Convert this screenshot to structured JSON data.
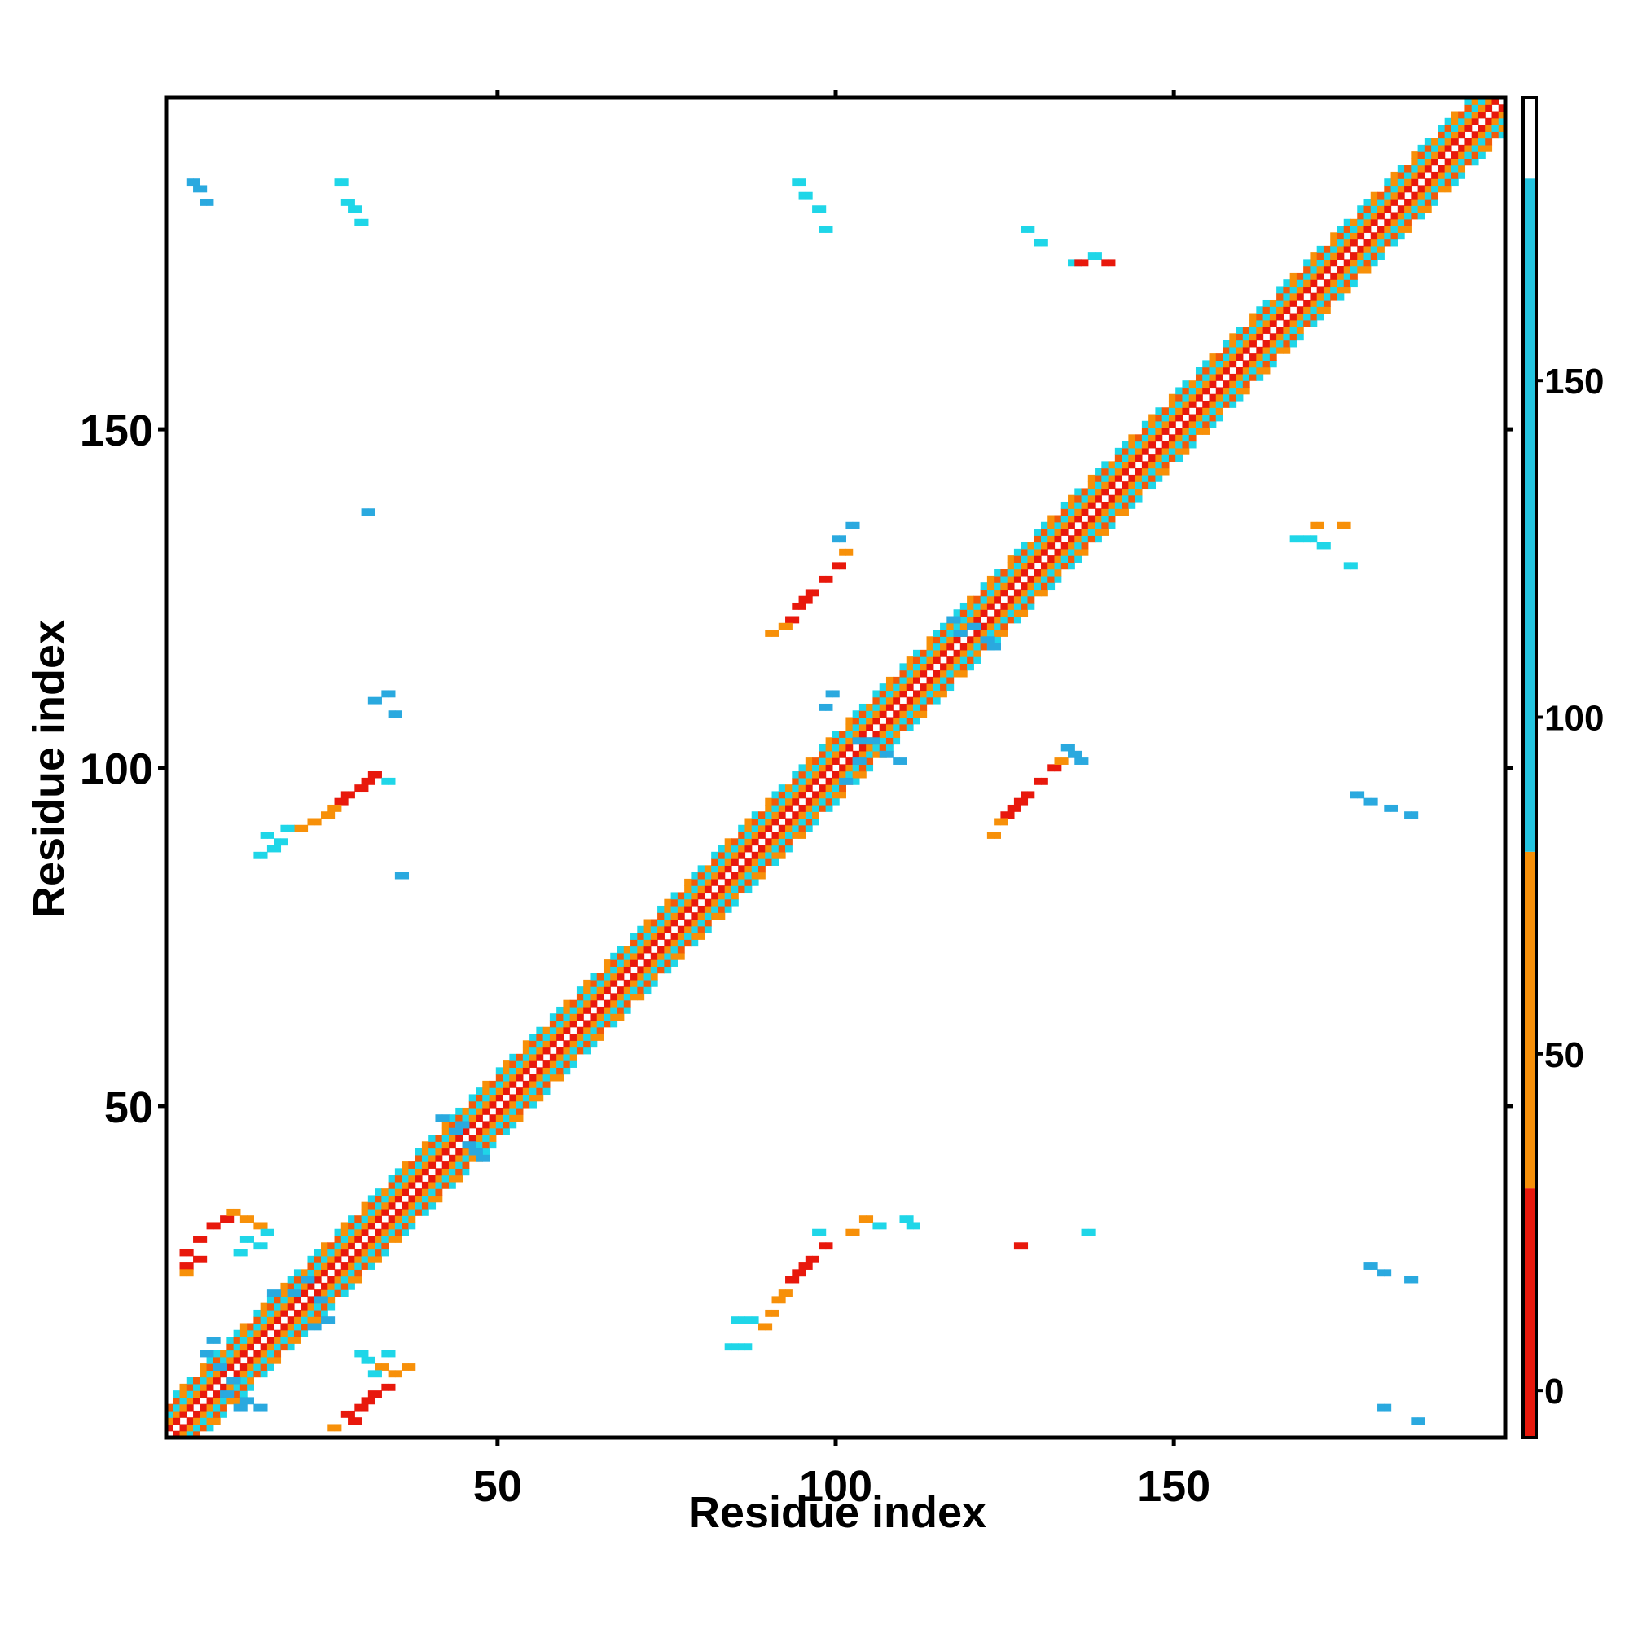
{
  "chart_data": {
    "type": "heatmap",
    "title": "",
    "xlabel": "Residue index",
    "ylabel": "Residue index",
    "xlim": [
      1,
      199
    ],
    "ylim": [
      1,
      199
    ],
    "x_ticks": [
      50,
      100,
      150
    ],
    "y_ticks": [
      50,
      100,
      150
    ],
    "colorbar": {
      "ticks": [
        0,
        50,
        100,
        150
      ],
      "range": [
        -7,
        192
      ],
      "bands": [
        {
          "from": -7,
          "to": 30,
          "color": "#e8180c"
        },
        {
          "from": 30,
          "to": 80,
          "color": "#f79009"
        },
        {
          "from": 80,
          "to": 180,
          "color": "#23c4e0"
        },
        {
          "from": 180,
          "to": 192,
          "color": "#ffffff"
        }
      ]
    },
    "colors": {
      "red": "#e8180c",
      "orange_red": "#f25a0a",
      "orange": "#f79009",
      "cyan": "#1fd6e8",
      "sky": "#2aa9df",
      "steel": "#3f86c0"
    },
    "regions": [
      {
        "kind": "diagonal",
        "from": 1,
        "to": 199
      },
      {
        "kind": "blob",
        "color": "red",
        "points": [
          [
            3,
            28
          ],
          [
            5,
            30
          ],
          [
            7,
            32
          ],
          [
            9,
            33
          ],
          [
            3,
            26
          ],
          [
            5,
            27
          ]
        ]
      },
      {
        "kind": "blob",
        "color": "orange",
        "points": [
          [
            10,
            34
          ],
          [
            12,
            33
          ],
          [
            14,
            32
          ],
          [
            3,
            25
          ]
        ]
      },
      {
        "kind": "blob",
        "color": "cyan",
        "points": [
          [
            12,
            30
          ],
          [
            14,
            29
          ],
          [
            15,
            31
          ],
          [
            11,
            28
          ]
        ]
      },
      {
        "kind": "blob",
        "color": "red",
        "points": [
          [
            27,
            4
          ],
          [
            29,
            5
          ],
          [
            31,
            7
          ],
          [
            33,
            8
          ],
          [
            30,
            6
          ],
          [
            28,
            3
          ]
        ]
      },
      {
        "kind": "blob",
        "color": "orange",
        "points": [
          [
            25,
            2
          ],
          [
            34,
            10
          ],
          [
            36,
            11
          ],
          [
            32,
            11
          ]
        ]
      },
      {
        "kind": "blob",
        "color": "cyan",
        "points": [
          [
            30,
            12
          ],
          [
            33,
            13
          ],
          [
            29,
            13
          ],
          [
            31,
            10
          ]
        ]
      },
      {
        "kind": "blob",
        "color": "sky",
        "points": [
          [
            6,
            13
          ],
          [
            8,
            11
          ],
          [
            10,
            9
          ],
          [
            7,
            15
          ],
          [
            9,
            7
          ],
          [
            11,
            5
          ],
          [
            12,
            6
          ],
          [
            14,
            5
          ]
        ]
      },
      {
        "kind": "blob",
        "color": "sky",
        "points": [
          [
            16,
            22
          ],
          [
            19,
            22
          ],
          [
            21,
            24
          ],
          [
            23,
            21
          ],
          [
            24,
            18
          ],
          [
            22,
            17
          ]
        ]
      },
      {
        "kind": "blob",
        "color": "sky",
        "points": [
          [
            41,
            48
          ],
          [
            43,
            46
          ],
          [
            45,
            44
          ],
          [
            47,
            42
          ],
          [
            44,
            47
          ],
          [
            46,
            43
          ]
        ]
      },
      {
        "kind": "blob",
        "color": "red",
        "points": [
          [
            27,
            96
          ],
          [
            29,
            97
          ],
          [
            31,
            99
          ],
          [
            26,
            95
          ],
          [
            30,
            98
          ]
        ]
      },
      {
        "kind": "blob",
        "color": "orange",
        "points": [
          [
            22,
            92
          ],
          [
            24,
            93
          ],
          [
            20,
            91
          ],
          [
            25,
            94
          ]
        ]
      },
      {
        "kind": "blob",
        "color": "cyan",
        "points": [
          [
            15,
            90
          ],
          [
            17,
            89
          ],
          [
            18,
            91
          ],
          [
            14,
            87
          ],
          [
            16,
            88
          ],
          [
            33,
            98
          ]
        ]
      },
      {
        "kind": "blob",
        "color": "sky",
        "points": [
          [
            35,
            84
          ],
          [
            31,
            110
          ],
          [
            33,
            111
          ],
          [
            34,
            108
          ],
          [
            30,
            138
          ],
          [
            4,
            187
          ],
          [
            6,
            184
          ],
          [
            5,
            186
          ]
        ]
      },
      {
        "kind": "blob",
        "color": "cyan",
        "points": [
          [
            26,
            187
          ],
          [
            27,
            184
          ],
          [
            28,
            183
          ],
          [
            29,
            181
          ]
        ]
      },
      {
        "kind": "blob",
        "color": "red",
        "points": [
          [
            94,
            25
          ],
          [
            96,
            27
          ],
          [
            98,
            29
          ],
          [
            95,
            26
          ],
          [
            93,
            24
          ]
        ]
      },
      {
        "kind": "blob",
        "color": "orange",
        "points": [
          [
            91,
            21
          ],
          [
            92,
            22
          ],
          [
            90,
            19
          ],
          [
            89,
            17
          ]
        ]
      },
      {
        "kind": "blob",
        "color": "cyan",
        "points": [
          [
            85,
            18
          ],
          [
            87,
            18
          ],
          [
            84,
            14
          ],
          [
            86,
            14
          ],
          [
            97,
            31
          ]
        ]
      },
      {
        "kind": "blob",
        "color": "red",
        "points": [
          [
            94,
            124
          ],
          [
            96,
            126
          ],
          [
            98,
            128
          ],
          [
            100,
            130
          ],
          [
            95,
            125
          ],
          [
            93,
            122
          ]
        ]
      },
      {
        "kind": "blob",
        "color": "orange",
        "points": [
          [
            92,
            121
          ],
          [
            101,
            132
          ],
          [
            90,
            120
          ]
        ]
      },
      {
        "kind": "blob",
        "color": "sky",
        "points": [
          [
            100,
            134
          ],
          [
            102,
            136
          ],
          [
            98,
            109
          ],
          [
            99,
            111
          ],
          [
            101,
            98
          ],
          [
            103,
            101
          ]
        ]
      },
      {
        "kind": "blob",
        "color": "sky",
        "points": [
          [
            105,
            104
          ],
          [
            107,
            102
          ],
          [
            109,
            101
          ],
          [
            103,
            104
          ]
        ]
      },
      {
        "kind": "blob",
        "color": "sky",
        "points": [
          [
            118,
            120
          ],
          [
            120,
            121
          ],
          [
            122,
            119
          ],
          [
            123,
            118
          ],
          [
            117,
            122
          ]
        ]
      },
      {
        "kind": "blob",
        "color": "red",
        "points": [
          [
            126,
            94
          ],
          [
            128,
            96
          ],
          [
            130,
            98
          ],
          [
            132,
            100
          ],
          [
            127,
            95
          ],
          [
            125,
            93
          ]
        ]
      },
      {
        "kind": "blob",
        "color": "orange",
        "points": [
          [
            124,
            92
          ],
          [
            133,
            101
          ],
          [
            123,
            90
          ]
        ]
      },
      {
        "kind": "blob",
        "color": "sky",
        "points": [
          [
            134,
            103
          ],
          [
            136,
            101
          ],
          [
            135,
            102
          ]
        ]
      },
      {
        "kind": "blob",
        "color": "cyan",
        "points": [
          [
            135,
            175
          ],
          [
            138,
            176
          ],
          [
            130,
            178
          ],
          [
            128,
            180
          ]
        ]
      },
      {
        "kind": "blob",
        "color": "red",
        "points": [
          [
            136,
            175
          ],
          [
            140,
            175
          ],
          [
            127,
            29
          ]
        ]
      },
      {
        "kind": "blob",
        "color": "cyan",
        "points": [
          [
            110,
            33
          ],
          [
            111,
            32
          ],
          [
            106,
            32
          ],
          [
            137,
            31
          ]
        ]
      },
      {
        "kind": "blob",
        "color": "orange",
        "points": [
          [
            104,
            33
          ],
          [
            102,
            31
          ]
        ]
      },
      {
        "kind": "blob",
        "color": "cyan",
        "points": [
          [
            170,
            134
          ],
          [
            172,
            133
          ],
          [
            168,
            134
          ],
          [
            176,
            130
          ]
        ]
      },
      {
        "kind": "blob",
        "color": "orange",
        "points": [
          [
            171,
            136
          ],
          [
            175,
            136
          ]
        ]
      },
      {
        "kind": "blob",
        "color": "sky",
        "points": [
          [
            177,
            96
          ],
          [
            179,
            95
          ],
          [
            182,
            94
          ],
          [
            185,
            93
          ]
        ]
      },
      {
        "kind": "blob",
        "color": "sky",
        "points": [
          [
            179,
            26
          ],
          [
            181,
            25
          ],
          [
            185,
            24
          ],
          [
            181,
            5
          ],
          [
            186,
            3
          ]
        ]
      },
      {
        "kind": "blob",
        "color": "cyan",
        "points": [
          [
            94,
            187
          ],
          [
            95,
            185
          ],
          [
            97,
            183
          ],
          [
            98,
            180
          ]
        ]
      }
    ]
  }
}
